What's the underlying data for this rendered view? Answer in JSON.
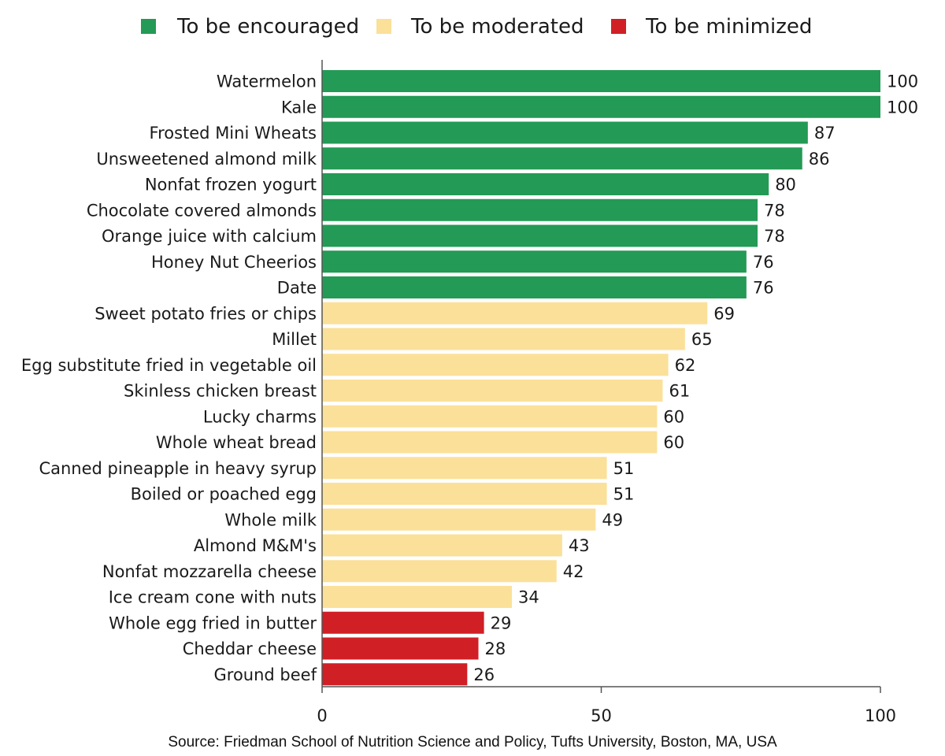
{
  "chart_data": {
    "type": "bar",
    "orientation": "horizontal",
    "categories": [
      "Watermelon",
      "Kale",
      "Frosted Mini Wheats",
      "Unsweetened almond milk",
      "Nonfat frozen yogurt",
      "Chocolate covered almonds",
      "Orange juice with calcium",
      "Honey Nut Cheerios",
      "Date",
      "Sweet potato fries or chips",
      "Millet",
      "Egg substitute fried in vegetable oil",
      "Skinless chicken breast",
      "Lucky charms",
      "Whole wheat bread",
      "Canned pineapple in heavy syrup",
      "Boiled or poached egg",
      "Whole milk",
      "Almond M&M's",
      "Nonfat mozzarella cheese",
      "Ice cream cone with nuts",
      "Whole egg fried in butter",
      "Cheddar cheese",
      "Ground beef"
    ],
    "values": [
      100,
      100,
      87,
      86,
      80,
      78,
      78,
      76,
      76,
      69,
      65,
      62,
      61,
      60,
      60,
      51,
      51,
      49,
      43,
      42,
      34,
      29,
      28,
      26
    ],
    "groups": [
      "encouraged",
      "encouraged",
      "encouraged",
      "encouraged",
      "encouraged",
      "encouraged",
      "encouraged",
      "encouraged",
      "encouraged",
      "moderated",
      "moderated",
      "moderated",
      "moderated",
      "moderated",
      "moderated",
      "moderated",
      "moderated",
      "moderated",
      "moderated",
      "moderated",
      "moderated",
      "minimized",
      "minimized",
      "minimized"
    ],
    "legend": [
      {
        "key": "encouraged",
        "label": "To be encouraged",
        "color": "#239a55"
      },
      {
        "key": "moderated",
        "label": "To be moderated",
        "color": "#fbe09a"
      },
      {
        "key": "minimized",
        "label": "To be minimized",
        "color": "#d11f26"
      }
    ],
    "legend_position": "top-center",
    "xlim": [
      0,
      100
    ],
    "xticks": [
      0,
      50,
      100
    ],
    "grid": false,
    "title": "",
    "xlabel": "",
    "ylabel": ""
  },
  "source": "Source: Friedman School of Nutrition Science and Policy, Tufts University, Boston, MA, USA"
}
